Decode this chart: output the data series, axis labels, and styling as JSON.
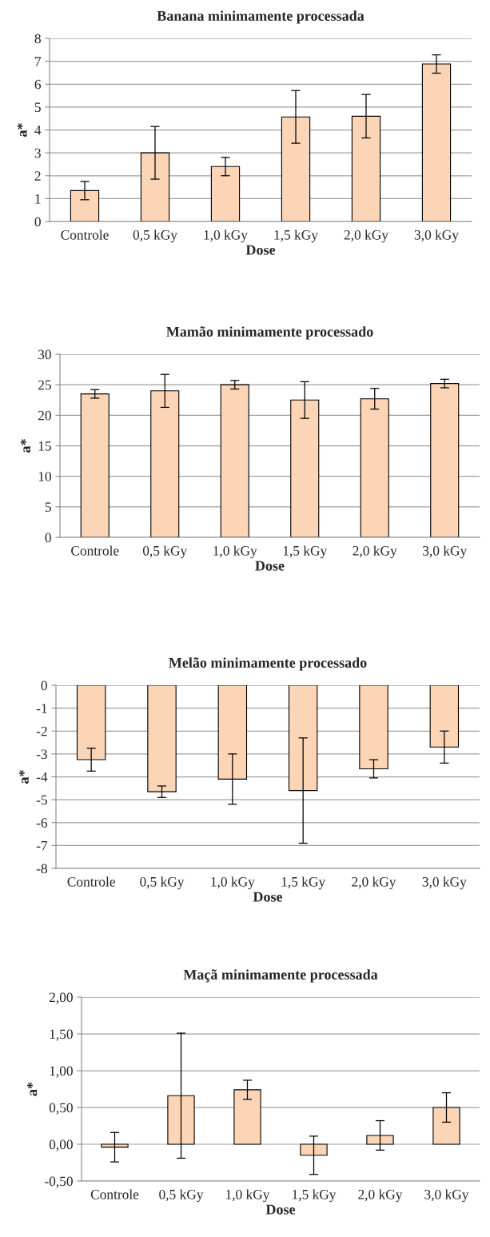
{
  "chart_data": [
    {
      "type": "bar",
      "title": "Banana minimamente processada",
      "xlabel": "Dose",
      "ylabel": "a*",
      "categories": [
        "Controle",
        "0,5 kGy",
        "1,0 kGy",
        "1,5 kGy",
        "2,0 kGy",
        "3,0 kGy"
      ],
      "values": [
        1.35,
        3.0,
        2.4,
        4.57,
        4.6,
        6.88
      ],
      "errors": [
        0.4,
        1.15,
        0.4,
        1.15,
        0.95,
        0.4
      ],
      "color": "#fbd5b5",
      "ylim": [
        0,
        8
      ],
      "yticks": [
        0,
        1,
        2,
        3,
        4,
        5,
        6,
        7,
        8
      ],
      "grid": "y",
      "legend": false
    },
    {
      "type": "bar",
      "title": "Mamão minimamente processado",
      "xlabel": "Dose",
      "ylabel": "a*",
      "categories": [
        "Controle",
        "0,5 kGy",
        "1,0 kGy",
        "1,5 kGy",
        "2,0 kGy",
        "3,0 kGy"
      ],
      "values": [
        23.5,
        24.0,
        25.0,
        22.5,
        22.7,
        25.2
      ],
      "errors": [
        0.7,
        2.7,
        0.7,
        3.0,
        1.7,
        0.7
      ],
      "color": "#fbd5b5",
      "ylim": [
        0,
        30
      ],
      "yticks": [
        0,
        5,
        10,
        15,
        20,
        25,
        30
      ],
      "grid": "y",
      "legend": false
    },
    {
      "type": "bar",
      "title": "Melão minimamente processado",
      "xlabel": "Dose",
      "ylabel": "a*",
      "categories": [
        "Controle",
        "0,5 kGy",
        "1,0 kGy",
        "1,5 kGy",
        "2,0 kGy",
        "3,0 kGy"
      ],
      "values": [
        -3.25,
        -4.65,
        -4.1,
        -4.6,
        -3.65,
        -2.7
      ],
      "errors": [
        0.5,
        0.25,
        1.1,
        2.3,
        0.4,
        0.7
      ],
      "color": "#fbd5b5",
      "ylim": [
        -8,
        0
      ],
      "yticks": [
        -8,
        -7,
        -6,
        -5,
        -4,
        -3,
        -2,
        -1,
        0
      ],
      "grid": "y",
      "legend": false
    },
    {
      "type": "bar",
      "title": "Maçã minimamente processada",
      "xlabel": "Dose",
      "ylabel": "a*",
      "categories": [
        "Controle",
        "0,5 kGy",
        "1,0 kGy",
        "1,5 kGy",
        "2,0 kGy",
        "3,0 kGy"
      ],
      "values": [
        -0.04,
        0.66,
        0.74,
        -0.15,
        0.12,
        0.5
      ],
      "errors": [
        0.2,
        0.85,
        0.13,
        0.26,
        0.2,
        0.2
      ],
      "color": "#fbd5b5",
      "ylim": [
        -0.5,
        2.0
      ],
      "yticks": [
        {
          "value": -0.5,
          "label": "-0,50"
        },
        {
          "value": 0,
          "label": "0,00"
        },
        {
          "value": 0.5,
          "label": "0,50"
        },
        {
          "value": 1.0,
          "label": "1,00"
        },
        {
          "value": 1.5,
          "label": "1,50"
        },
        {
          "value": 2.0,
          "label": "2,00"
        }
      ],
      "grid": "y",
      "legend": false
    }
  ]
}
